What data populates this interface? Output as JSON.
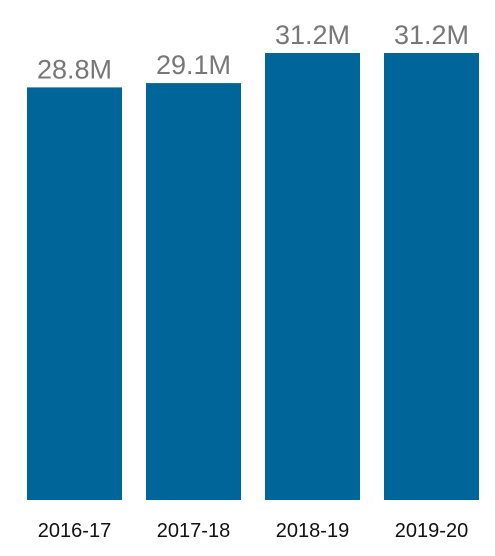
{
  "chart_data": {
    "type": "bar",
    "categories": [
      "2016-17",
      "2017-18",
      "2018-19",
      "2019-20"
    ],
    "values": [
      28.8,
      29.1,
      31.2,
      31.2
    ],
    "value_labels": [
      "28.8M",
      "29.1M",
      "31.2M",
      "31.2M"
    ],
    "bar_color": "#006699",
    "value_label_color": "#777777",
    "category_label_color": "#111111",
    "grid": false,
    "legend": "none",
    "ylim": [
      0,
      31.2
    ]
  }
}
